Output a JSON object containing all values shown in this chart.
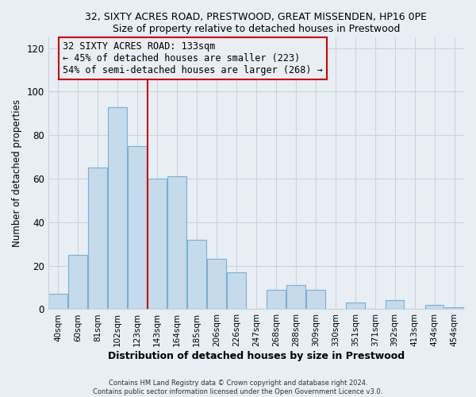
{
  "title": "32, SIXTY ACRES ROAD, PRESTWOOD, GREAT MISSENDEN, HP16 0PE",
  "subtitle": "Size of property relative to detached houses in Prestwood",
  "xlabel": "Distribution of detached houses by size in Prestwood",
  "ylabel": "Number of detached properties",
  "bar_labels": [
    "40sqm",
    "60sqm",
    "81sqm",
    "102sqm",
    "123sqm",
    "143sqm",
    "164sqm",
    "185sqm",
    "206sqm",
    "226sqm",
    "247sqm",
    "268sqm",
    "288sqm",
    "309sqm",
    "330sqm",
    "351sqm",
    "371sqm",
    "392sqm",
    "413sqm",
    "434sqm",
    "454sqm"
  ],
  "bar_heights": [
    7,
    25,
    65,
    93,
    75,
    60,
    61,
    32,
    23,
    17,
    0,
    9,
    11,
    9,
    0,
    3,
    0,
    4,
    0,
    2,
    1
  ],
  "bar_color": "#c5daea",
  "bar_edge_color": "#7aafd4",
  "vline_color": "#cc0000",
  "annotation_text": "32 SIXTY ACRES ROAD: 133sqm\n← 45% of detached houses are smaller (223)\n54% of semi-detached houses are larger (268) →",
  "annotation_box_edge": "#cc0000",
  "ylim": [
    0,
    125
  ],
  "yticks": [
    0,
    20,
    40,
    60,
    80,
    100,
    120
  ],
  "footer1": "Contains HM Land Registry data © Crown copyright and database right 2024.",
  "footer2": "Contains public sector information licensed under the Open Government Licence v3.0.",
  "background_color": "#e8eef4",
  "plot_bg_color": "#e8eef4",
  "grid_color": "#c8d4de"
}
